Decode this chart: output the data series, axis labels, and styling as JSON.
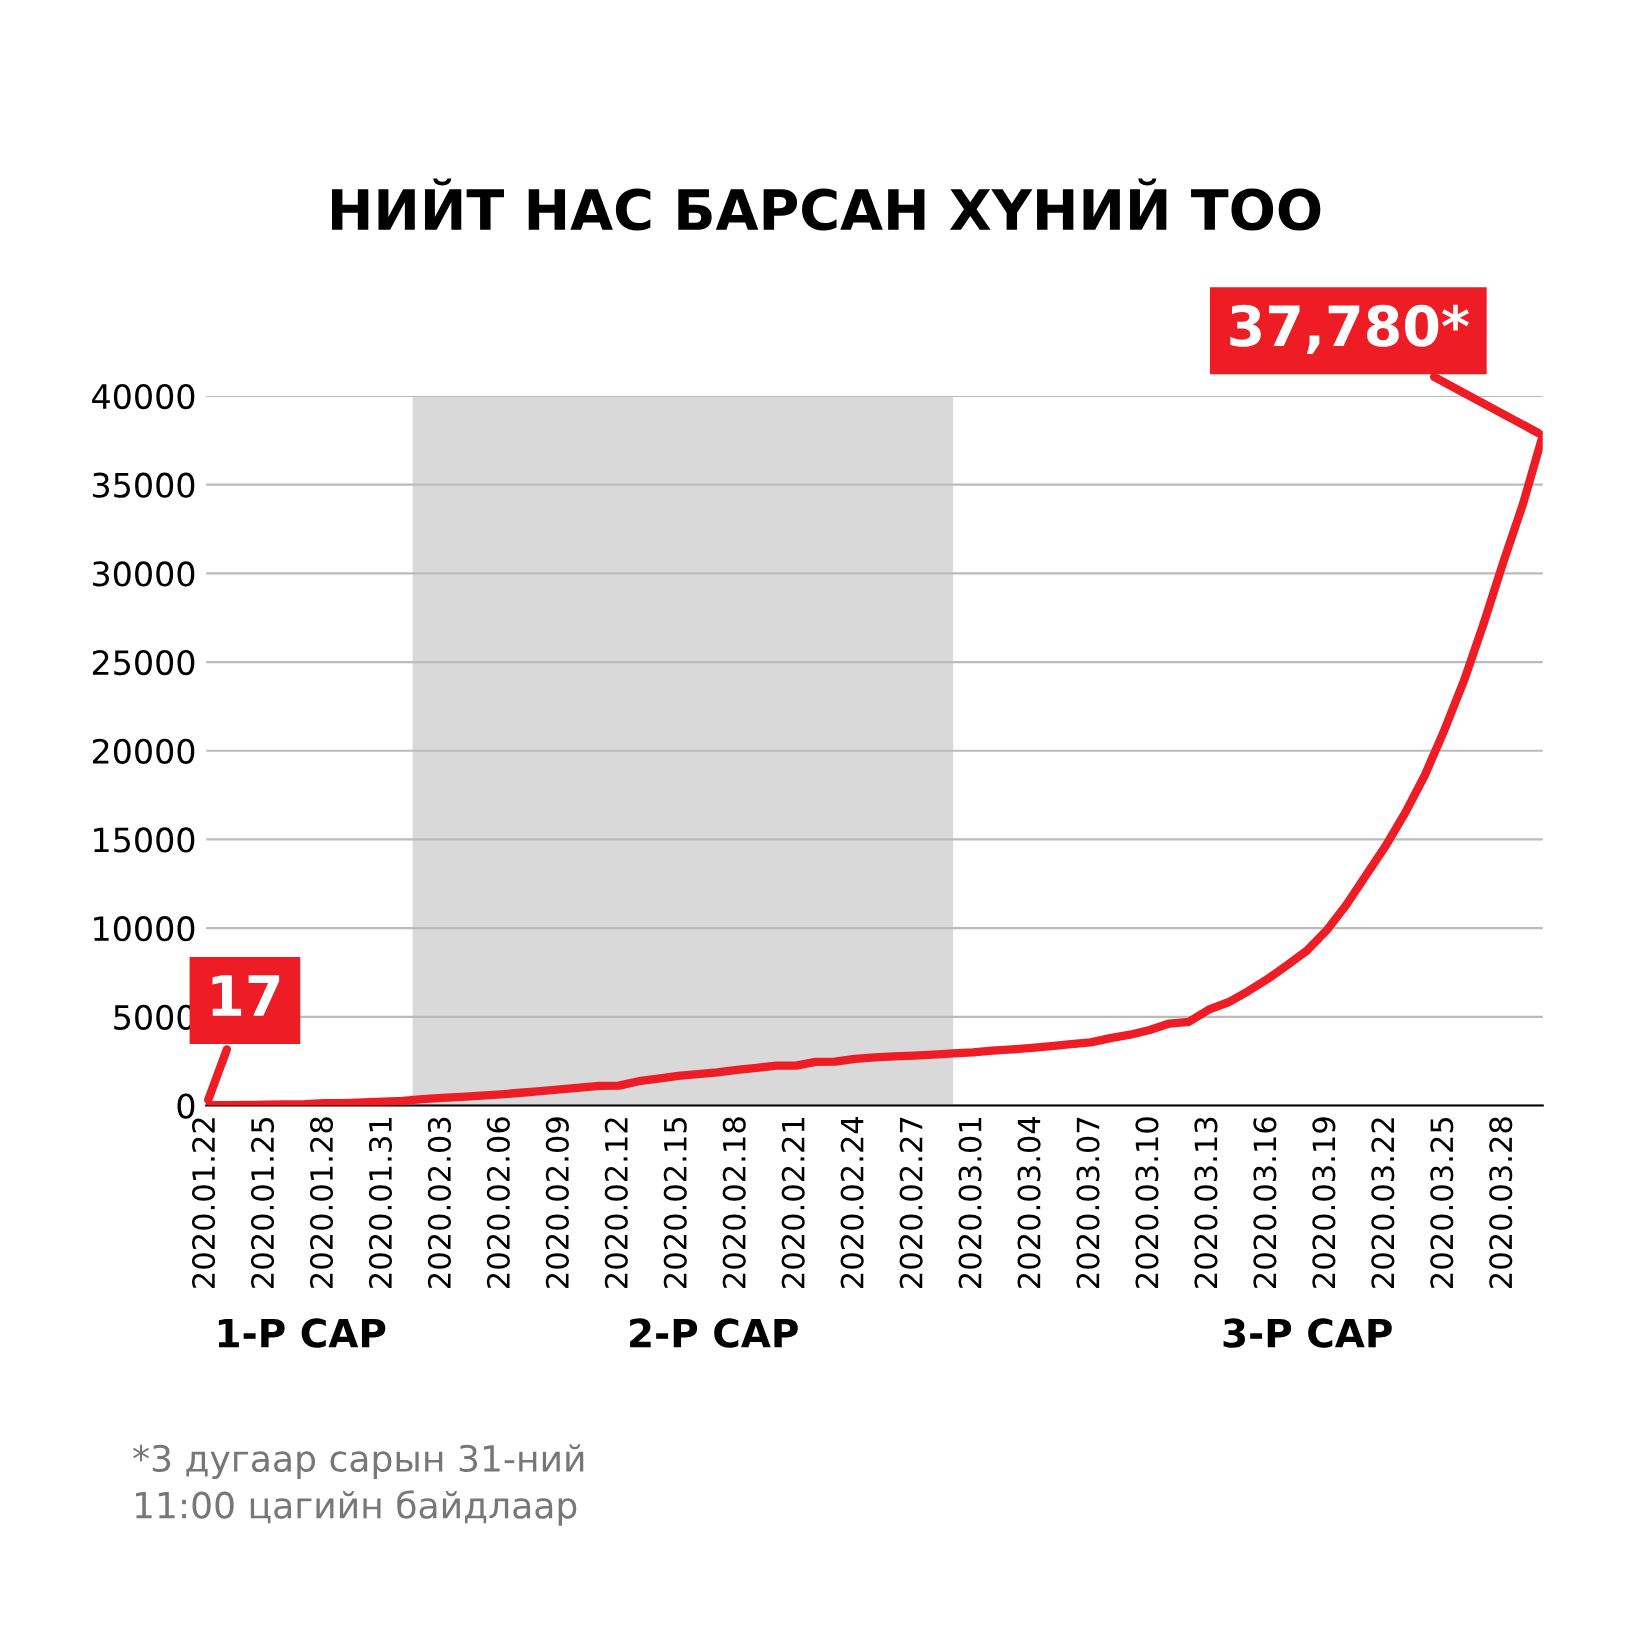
{
  "chart_data": {
    "type": "line",
    "title": "НИЙТ НАС БАРСАН ХҮНИЙ ТОО",
    "x": [
      "2020-01-22",
      "2020-01-23",
      "2020-01-24",
      "2020-01-25",
      "2020-01-26",
      "2020-01-27",
      "2020-01-28",
      "2020-01-29",
      "2020-01-30",
      "2020-01-31",
      "2020-02-01",
      "2020-02-02",
      "2020-02-03",
      "2020-02-04",
      "2020-02-05",
      "2020-02-06",
      "2020-02-07",
      "2020-02-08",
      "2020-02-09",
      "2020-02-10",
      "2020-02-11",
      "2020-02-12",
      "2020-02-13",
      "2020-02-14",
      "2020-02-15",
      "2020-02-16",
      "2020-02-17",
      "2020-02-18",
      "2020-02-19",
      "2020-02-20",
      "2020-02-21",
      "2020-02-22",
      "2020-02-23",
      "2020-02-24",
      "2020-02-25",
      "2020-02-26",
      "2020-02-27",
      "2020-02-28",
      "2020-02-29",
      "2020-03-01",
      "2020-03-02",
      "2020-03-03",
      "2020-03-04",
      "2020-03-05",
      "2020-03-06",
      "2020-03-07",
      "2020-03-08",
      "2020-03-09",
      "2020-03-10",
      "2020-03-11",
      "2020-03-12",
      "2020-03-13",
      "2020-03-14",
      "2020-03-15",
      "2020-03-16",
      "2020-03-17",
      "2020-03-18",
      "2020-03-19",
      "2020-03-20",
      "2020-03-21",
      "2020-03-22",
      "2020-03-23",
      "2020-03-24",
      "2020-03-25",
      "2020-03-26",
      "2020-03-27",
      "2020-03-28",
      "2020-03-29",
      "2020-03-30"
    ],
    "series": [
      {
        "color": "#ee1c25",
        "values": [
          17,
          20,
          30,
          40,
          60,
          80,
          130,
          130,
          170,
          210,
          260,
          360,
          430,
          490,
          560,
          630,
          720,
          810,
          910,
          1010,
          1110,
          1120,
          1370,
          1520,
          1670,
          1770,
          1870,
          2010,
          2120,
          2250,
          2250,
          2460,
          2470,
          2630,
          2710,
          2770,
          2810,
          2870,
          2940,
          3000,
          3090,
          3160,
          3250,
          3350,
          3460,
          3560,
          3800,
          3990,
          4260,
          4620,
          4720,
          5400,
          5820,
          6440,
          7130,
          7910,
          8730,
          9870,
          11300,
          12970,
          14620,
          16500,
          18620,
          21180,
          23970,
          27200,
          30650,
          33930,
          37780
        ],
        "value_labels": [
          "17",
          null,
          null,
          null,
          null,
          null,
          null,
          null,
          null,
          null,
          null,
          null,
          null,
          null,
          null,
          null,
          null,
          null,
          null,
          null,
          null,
          null,
          null,
          null,
          null,
          null,
          null,
          null,
          null,
          null,
          null,
          null,
          null,
          null,
          null,
          null,
          null,
          null,
          null,
          null,
          null,
          null,
          null,
          null,
          null,
          null,
          null,
          null,
          null,
          null,
          null,
          null,
          null,
          null,
          null,
          null,
          null,
          null,
          null,
          null,
          null,
          null,
          null,
          null,
          null,
          null,
          null,
          null,
          "37,780*"
        ]
      }
    ],
    "xlim": [
      "2020-01-22",
      "2020-03-30"
    ],
    "xticks": [
      {
        "value": "2020-01-22",
        "label": "2020.01.22"
      },
      {
        "value": "2020-01-25",
        "label": "2020.01.25"
      },
      {
        "value": "2020-01-28",
        "label": "2020.01.28"
      },
      {
        "value": "2020-01-31",
        "label": "2020.01.31"
      },
      {
        "value": "2020-02-03",
        "label": "2020.02.03"
      },
      {
        "value": "2020-02-06",
        "label": "2020.02.06"
      },
      {
        "value": "2020-02-09",
        "label": "2020.02.09"
      },
      {
        "value": "2020-02-12",
        "label": "2020.02.12"
      },
      {
        "value": "2020-02-15",
        "label": "2020.02.15"
      },
      {
        "value": "2020-02-18",
        "label": "2020.02.18"
      },
      {
        "value": "2020-02-21",
        "label": "2020.02.21"
      },
      {
        "value": "2020-02-24",
        "label": "2020.02.24"
      },
      {
        "value": "2020-02-27",
        "label": "2020.02.27"
      },
      {
        "value": "2020-03-01",
        "label": "2020.03.01"
      },
      {
        "value": "2020-03-04",
        "label": "2020.03.04"
      },
      {
        "value": "2020-03-07",
        "label": "2020.03.07"
      },
      {
        "value": "2020-03-10",
        "label": "2020.03.10"
      },
      {
        "value": "2020-03-13",
        "label": "2020.03.13"
      },
      {
        "value": "2020-03-16",
        "label": "2020.03.16"
      },
      {
        "value": "2020-03-19",
        "label": "2020.03.19"
      },
      {
        "value": "2020-03-22",
        "label": "2020.03.22"
      },
      {
        "value": "2020-03-25",
        "label": "2020.03.25"
      },
      {
        "value": "2020-03-28",
        "label": "2020.03.28"
      }
    ],
    "ylim": [
      0,
      40000
    ],
    "yticks": [
      0,
      5000,
      10000,
      15000,
      20000,
      25000,
      30000,
      35000,
      40000
    ],
    "grid": "y",
    "marker": "none",
    "line_style": "solid",
    "bands": [
      {
        "axis": "x",
        "from": "2020-02-01T12:00",
        "to": "2020-02-29",
        "color": "#d9d9d9"
      }
    ],
    "annotations": [
      "1-Р САР",
      "2-Р САР",
      "3-Р САР",
      "*3 дугаар сарын 31-ний\n11:00 цагийн байдлаар"
    ]
  }
}
